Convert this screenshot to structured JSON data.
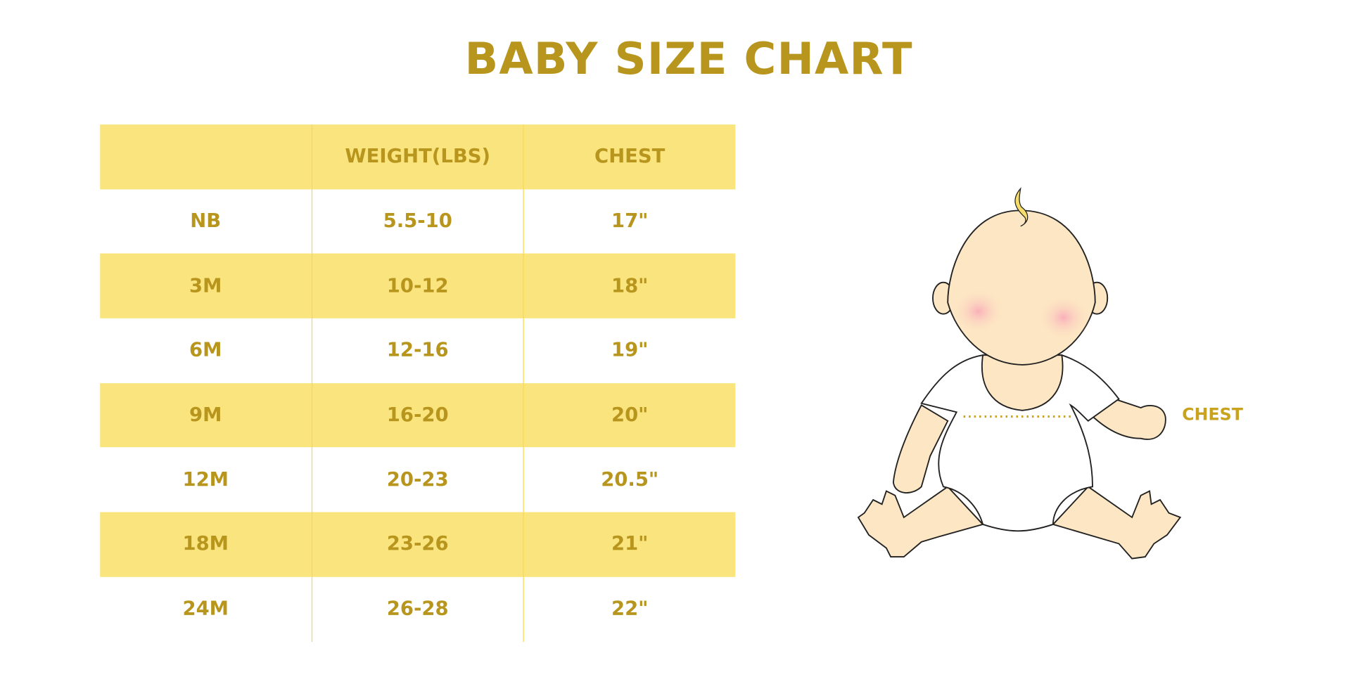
{
  "title": "BABY SIZE CHART",
  "table": {
    "headers": [
      "",
      "WEIGHT(LBS)",
      "CHEST"
    ],
    "rows": [
      [
        "NB",
        "5.5-10",
        "17\""
      ],
      [
        "3M",
        "10-12",
        "18\""
      ],
      [
        "6M",
        "12-16",
        "19\""
      ],
      [
        "9M",
        "16-20",
        "20\""
      ],
      [
        "12M",
        "20-23",
        "20.5\""
      ],
      [
        "18M",
        "23-26",
        "21\""
      ],
      [
        "24M",
        "26-28",
        "22\""
      ]
    ]
  },
  "illustration": {
    "chest_label": "CHEST"
  },
  "colors": {
    "text": "#B8961E",
    "band": "#FAE47E",
    "skin": "#FDE6C3",
    "blush": "#F9B8BE"
  }
}
